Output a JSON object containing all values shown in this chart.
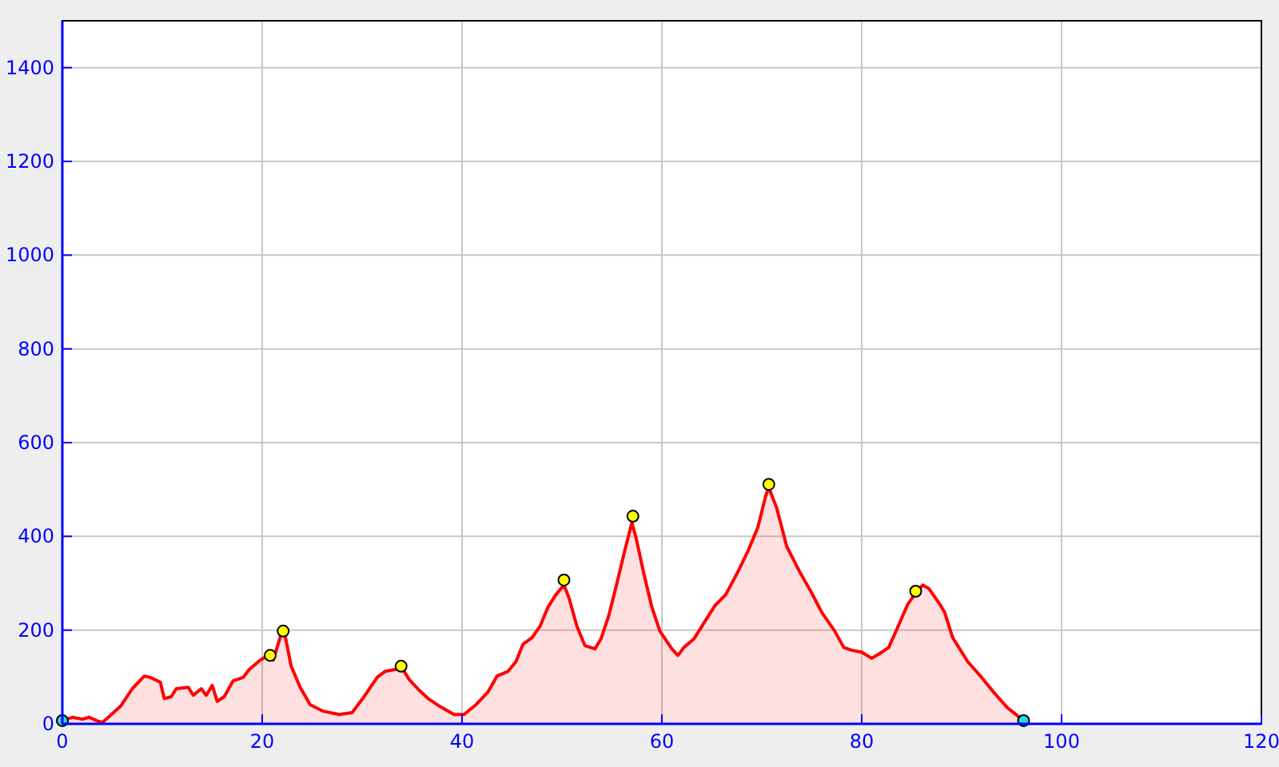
{
  "chart_data": {
    "type": "area",
    "xlim": [
      0,
      120
    ],
    "xticks": [
      0,
      20,
      40,
      60,
      80,
      100,
      120
    ],
    "ylim": [
      0,
      1500
    ],
    "yticks": [
      0,
      200,
      400,
      600,
      800,
      1000,
      1200,
      1400
    ],
    "grid": true,
    "series": [
      {
        "color": "#ff0000",
        "marker": "none",
        "x": [
          0,
          1,
          2,
          2.7,
          3.4,
          4,
          4.6,
          5.8,
          7,
          8.2,
          8.8,
          9.8,
          10.2,
          10.9,
          11.4,
          12.6,
          13.1,
          13.9,
          14.4,
          15,
          15.5,
          16.2,
          17.1,
          18.1,
          18.7,
          19.8,
          20.6,
          21.1,
          21.9,
          22.2,
          22.9,
          23.8,
          24.8,
          26.1,
          27.7,
          29,
          30.2,
          31.5,
          32.3,
          33.3,
          33.9,
          34.7,
          35.7,
          36.6,
          37.8,
          39.2,
          40.2,
          41.4,
          42.6,
          43.5,
          44.6,
          45.4,
          46.1,
          47,
          47.8,
          48.6,
          49.4,
          50.2,
          50.7,
          51.5,
          52.3,
          53.3,
          53.9,
          54.7,
          55.5,
          56.3,
          57,
          57.4,
          58.2,
          59,
          59.8,
          61,
          61.6,
          62.2,
          63.2,
          64.2,
          65.3,
          66.4,
          67.5,
          68.6,
          69.6,
          70.4,
          70.7,
          71.5,
          72.5,
          73.8,
          74.9,
          76,
          77.3,
          78.2,
          79,
          80,
          81,
          81.8,
          82.7,
          83.7,
          84.6,
          85.4,
          86.1,
          86.7,
          87.7,
          88.3,
          89.1,
          90.6,
          92,
          93.3,
          94.6,
          96.2
        ],
        "values": [
          7,
          14,
          10,
          14,
          7,
          3,
          14,
          37,
          75,
          102,
          99,
          89,
          54,
          58,
          75,
          78,
          61,
          75,
          61,
          82,
          48,
          58,
          92,
          99,
          116,
          136,
          146,
          136,
          191,
          198,
          123,
          78,
          41,
          27,
          20,
          24,
          58,
          99,
          112,
          116,
          123,
          95,
          72,
          54,
          37,
          20,
          20,
          41,
          68,
          102,
          112,
          133,
          170,
          184,
          208,
          249,
          276,
          296,
          269,
          208,
          167,
          160,
          181,
          232,
          300,
          371,
          429,
          398,
          320,
          249,
          198,
          160,
          146,
          163,
          181,
          215,
          252,
          276,
          320,
          368,
          419,
          487,
          504,
          460,
          378,
          324,
          283,
          238,
          198,
          163,
          157,
          153,
          140,
          150,
          163,
          211,
          255,
          279,
          296,
          289,
          259,
          238,
          184,
          133,
          99,
          65,
          34,
          7
        ]
      },
      {
        "type": "scatter",
        "color": "#ffff00",
        "marker": "circle",
        "x": [
          20.8,
          22.1,
          33.9,
          50.2,
          57.1,
          70.7,
          85.4
        ],
        "values": [
          146,
          198,
          123,
          307,
          443,
          511,
          283
        ]
      },
      {
        "type": "scatter",
        "color": "#22dddd",
        "marker": "circle",
        "x": [
          0,
          96.2
        ],
        "values": [
          7,
          7
        ]
      }
    ]
  }
}
